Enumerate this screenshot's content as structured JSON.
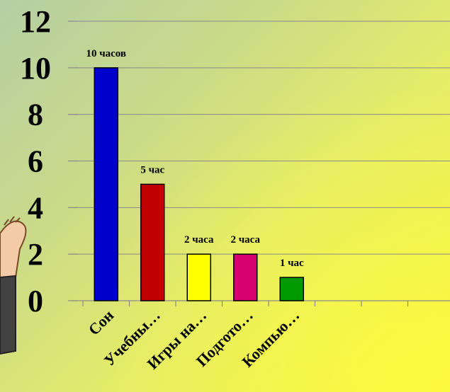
{
  "chart_data": {
    "type": "bar",
    "categories": [
      "Сон",
      "Учебны…",
      "Игры на…",
      "Подгото…",
      "Компью…"
    ],
    "values": [
      10,
      5,
      2,
      2,
      1
    ],
    "data_labels": [
      "10 часов",
      "5 час",
      "2 часа",
      "2 часа",
      "1 час"
    ],
    "colors": [
      "#0000cc",
      "#c00000",
      "#ffff00",
      "#d6006e",
      "#009900"
    ],
    "ylim": [
      0,
      12
    ],
    "yticks": [
      0,
      2,
      4,
      6,
      8,
      10,
      12
    ],
    "ytick_labels": [
      "0",
      "2",
      "4",
      "6",
      "8",
      "10",
      "12"
    ],
    "grid": true,
    "legend": "none",
    "title": "",
    "xlabel": "",
    "ylabel": ""
  }
}
